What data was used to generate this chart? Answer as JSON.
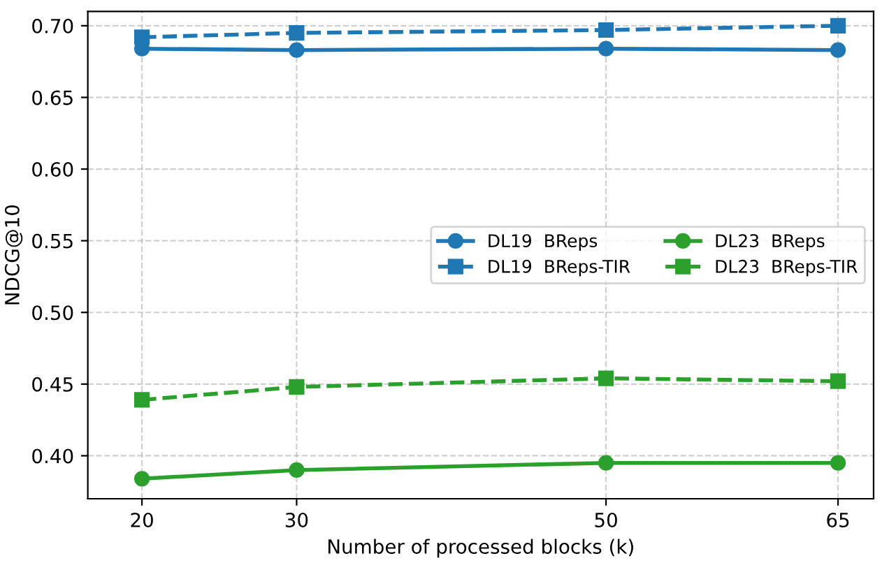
{
  "chart_data": {
    "type": "line",
    "xlabel": "Number of processed blocks (k)",
    "ylabel": "NDCG@10",
    "x": [
      20,
      30,
      50,
      65
    ],
    "series": [
      {
        "name": "DL19  BReps",
        "color": "#1f77b4",
        "values": [
          0.684,
          0.683,
          0.684,
          0.683
        ],
        "marker": "circle",
        "line_style": "solid"
      },
      {
        "name": "DL19  BReps-TIR",
        "color": "#1f77b4",
        "values": [
          0.692,
          0.695,
          0.697,
          0.7
        ],
        "marker": "square",
        "line_style": "dashed"
      },
      {
        "name": "DL23  BReps",
        "color": "#2ca02c",
        "values": [
          0.384,
          0.39,
          0.395,
          0.395
        ],
        "marker": "circle",
        "line_style": "solid"
      },
      {
        "name": "DL23  BReps-TIR",
        "color": "#2ca02c",
        "values": [
          0.439,
          0.448,
          0.454,
          0.452
        ],
        "marker": "square",
        "line_style": "dashed"
      }
    ],
    "xlim": [
      16.5,
      67.3
    ],
    "xticks": [
      20,
      30,
      50,
      65
    ],
    "ylim": [
      0.37,
      0.71
    ],
    "yticks": [
      {
        "value": 0.4,
        "label": "0.40"
      },
      {
        "value": 0.45,
        "label": "0.45"
      },
      {
        "value": 0.5,
        "label": "0.50"
      },
      {
        "value": 0.55,
        "label": "0.55"
      },
      {
        "value": 0.6,
        "label": "0.60"
      },
      {
        "value": 0.65,
        "label": "0.65"
      },
      {
        "value": 0.7,
        "label": "0.70"
      }
    ],
    "grid": true,
    "legend": "right"
  }
}
